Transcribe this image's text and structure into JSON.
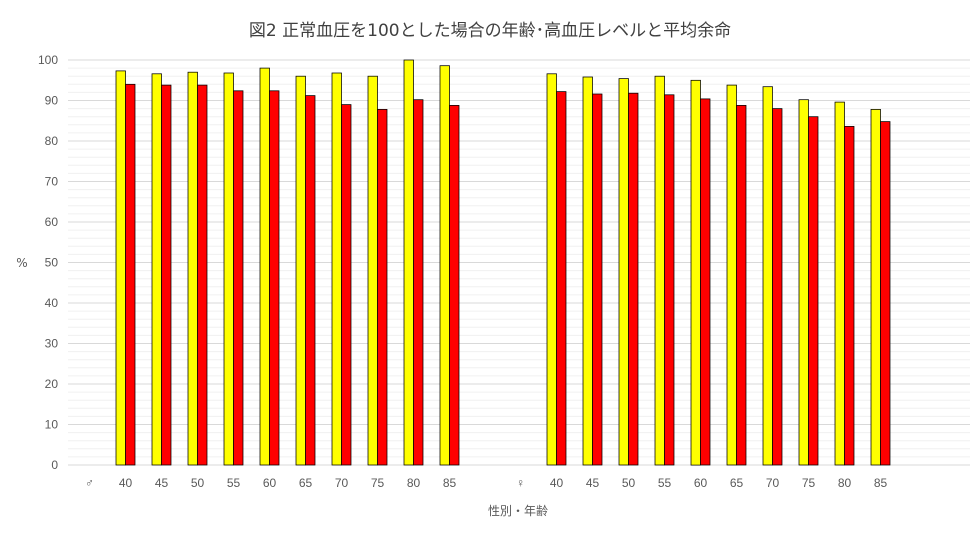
{
  "chart_data": {
    "type": "bar",
    "title": "図2  正常血圧を100とした場合の年齢･高血圧レベルと平均余命",
    "ylabel": "%",
    "xlabel": "性別・年齢",
    "ylim": [
      0,
      100
    ],
    "yticks": [
      0,
      10,
      20,
      30,
      40,
      50,
      60,
      70,
      80,
      90,
      100
    ],
    "grid": true,
    "groups": [
      {
        "sex_label": "♂",
        "categories": [
          "40",
          "45",
          "50",
          "55",
          "60",
          "65",
          "70",
          "75",
          "80",
          "85"
        ],
        "series": [
          {
            "color": "#FFFF00",
            "values": [
              97.3,
              96.6,
              97.0,
              96.8,
              98.0,
              96.0,
              96.8,
              96.0,
              100.0,
              98.6
            ]
          },
          {
            "color": "#FF0000",
            "values": [
              94.0,
              93.8,
              93.8,
              92.4,
              92.4,
              91.2,
              89.0,
              87.8,
              90.2,
              88.8
            ]
          }
        ]
      },
      {
        "sex_label": "♀",
        "categories": [
          "40",
          "45",
          "50",
          "55",
          "60",
          "65",
          "70",
          "75",
          "80",
          "85"
        ],
        "series": [
          {
            "color": "#FFFF00",
            "values": [
              96.6,
              95.8,
              95.4,
              96.0,
              95.0,
              93.8,
              93.4,
              90.2,
              89.6,
              87.8
            ]
          },
          {
            "color": "#FF0000",
            "values": [
              92.2,
              91.6,
              91.8,
              91.4,
              90.4,
              88.8,
              88.0,
              86.0,
              83.6,
              84.8
            ]
          }
        ]
      }
    ]
  }
}
